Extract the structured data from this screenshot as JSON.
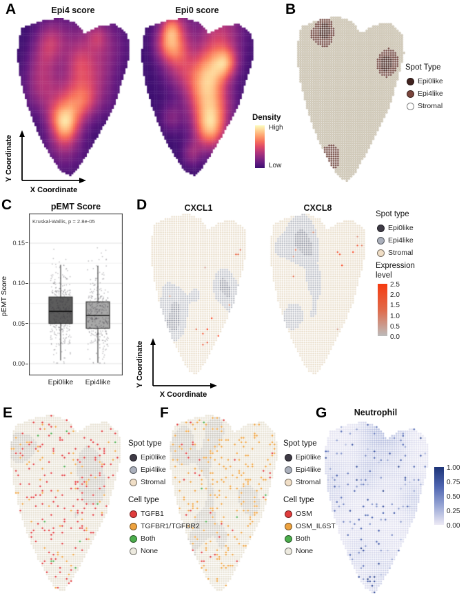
{
  "tissue_outline": [
    [
      0.06,
      0.06
    ],
    [
      0.22,
      0.02
    ],
    [
      0.38,
      0.0
    ],
    [
      0.52,
      0.03
    ],
    [
      0.6,
      0.1
    ],
    [
      0.72,
      0.05
    ],
    [
      0.86,
      0.04
    ],
    [
      0.97,
      0.1
    ],
    [
      0.99,
      0.22
    ],
    [
      0.95,
      0.34
    ],
    [
      0.9,
      0.45
    ],
    [
      0.86,
      0.55
    ],
    [
      0.78,
      0.66
    ],
    [
      0.7,
      0.76
    ],
    [
      0.62,
      0.86
    ],
    [
      0.55,
      0.94
    ],
    [
      0.48,
      1.0
    ],
    [
      0.4,
      0.97
    ],
    [
      0.33,
      0.9
    ],
    [
      0.25,
      0.8
    ],
    [
      0.17,
      0.68
    ],
    [
      0.1,
      0.54
    ],
    [
      0.05,
      0.4
    ],
    [
      0.02,
      0.26
    ],
    [
      0.03,
      0.14
    ]
  ],
  "colormaps": {
    "magma": [
      "#140e36",
      "#3b0f70",
      "#641a80",
      "#8c2981",
      "#b5367a",
      "#de4968",
      "#f7705c",
      "#fe9f6d",
      "#fece91",
      "#fcfdbf"
    ],
    "magma_legend": [
      "#fcfdbf",
      "#fece91",
      "#fe9f6d",
      "#f7705c",
      "#de4968",
      "#b5367a",
      "#8c2981",
      "#641a80",
      "#3b0f70"
    ],
    "reds": [
      "#bcbcbc",
      "#d09179",
      "#e5643f",
      "#f63a10"
    ],
    "reds_legend": [
      "#f63a10",
      "#e06a4a",
      "#bcbcbc"
    ],
    "blues": [
      "#edeaf5",
      "#bcc3e2",
      "#7b8cc7",
      "#3c55a8",
      "#1d3478"
    ],
    "blues_legend": [
      "#1d3478",
      "#4d64b0",
      "#97a5d4",
      "#edeaf5"
    ]
  },
  "panels": {
    "a": {
      "label": "A",
      "titles": [
        "Epi4 score",
        "Epi0 score"
      ],
      "legend": {
        "title": "Density",
        "high": "High",
        "low": "Low"
      },
      "x_axis": "X Coordinate",
      "y_axis": "Y Coordinate"
    },
    "b": {
      "label": "B",
      "legend": {
        "title": "Spot Type",
        "items": [
          {
            "label": "Epi0like",
            "color": "#42231f"
          },
          {
            "label": "Epi4like",
            "color": "#7a453c"
          },
          {
            "label": "Stromal",
            "color": "#ffffff"
          }
        ]
      }
    },
    "c": {
      "label": "C",
      "title": "pEMT Score",
      "annotation": "Kruskal-Wallis, p = 2.8e-05",
      "y_axis": "pEMT Score",
      "y_ticks": [
        "0.15",
        "0.10",
        "0.05",
        "0.00"
      ],
      "x_labels": [
        "Epi0like",
        "Epi4like"
      ]
    },
    "d": {
      "label": "D",
      "titles": [
        "CXCL1",
        "CXCL8"
      ],
      "spot_legend": {
        "title": "Spot type",
        "items": [
          {
            "label": "Epi0like",
            "color": "#3f3b46"
          },
          {
            "label": "Epi4like",
            "color": "#abb0bc"
          },
          {
            "label": "Stromal",
            "color": "#f0dec6"
          }
        ]
      },
      "expr_legend": {
        "title": "Expression level",
        "ticks": [
          "2.5",
          "2.0",
          "1.5",
          "1.0",
          "0.5",
          "0.0"
        ]
      },
      "x_axis": "X Coordinate",
      "y_axis": "Y Coordinate"
    },
    "e": {
      "label": "E",
      "spot_legend": {
        "title": "Spot type",
        "items": [
          {
            "label": "Epi0like",
            "color": "#3f3b46"
          },
          {
            "label": "Epi4like",
            "color": "#abb0bc"
          },
          {
            "label": "Stromal",
            "color": "#f0dec6"
          }
        ]
      },
      "cell_legend": {
        "title": "Cell type",
        "items": [
          {
            "label": "TGFB1",
            "color": "#e03c3c"
          },
          {
            "label": "TGFBR1/TGFBR2",
            "color": "#eda23f"
          },
          {
            "label": "Both",
            "color": "#4cae4c"
          },
          {
            "label": "None",
            "color": "#edeadf"
          }
        ]
      }
    },
    "f": {
      "label": "F",
      "spot_legend": {
        "title": "Spot type",
        "items": [
          {
            "label": "Epi0like",
            "color": "#3f3b46"
          },
          {
            "label": "Epi4like",
            "color": "#abb0bc"
          },
          {
            "label": "Stromal",
            "color": "#f0dec6"
          }
        ]
      },
      "cell_legend": {
        "title": "Cell type",
        "items": [
          {
            "label": "OSM",
            "color": "#e03c3c"
          },
          {
            "label": "OSM_IL6ST",
            "color": "#eda23f"
          },
          {
            "label": "Both",
            "color": "#4cae4c"
          },
          {
            "label": "None",
            "color": "#edeadf"
          }
        ]
      }
    },
    "g": {
      "label": "G",
      "title": "Neutrophil",
      "legend": {
        "ticks": [
          "1.00",
          "0.75",
          "0.50",
          "0.25",
          "0.00"
        ]
      }
    }
  },
  "chart_data": [
    {
      "id": "a1",
      "type": "heatmap",
      "title": "Epi4 score",
      "measure": "density",
      "legend": {
        "high": "High",
        "low": "Low"
      },
      "colormap": "magma",
      "seed": 11,
      "blobs": 15,
      "hotspots": [
        [
          0.3,
          0.16,
          1.0,
          0.1
        ],
        [
          0.24,
          0.45,
          0.95,
          0.12
        ],
        [
          0.55,
          0.3,
          0.7,
          0.09
        ],
        [
          0.42,
          0.72,
          0.65,
          0.09
        ],
        [
          0.62,
          0.52,
          0.5,
          0.08
        ]
      ]
    },
    {
      "id": "a2",
      "type": "heatmap",
      "title": "Epi0 score",
      "measure": "density",
      "legend": {
        "high": "High",
        "low": "Low"
      },
      "colormap": "magma",
      "seed": 29,
      "blobs": 15,
      "hotspots": [
        [
          0.55,
          0.5,
          1.05,
          0.12
        ],
        [
          0.62,
          0.68,
          0.9,
          0.1
        ],
        [
          0.35,
          0.22,
          0.55,
          0.08
        ],
        [
          0.78,
          0.28,
          0.5,
          0.07
        ],
        [
          0.45,
          0.86,
          0.55,
          0.06
        ]
      ]
    },
    {
      "id": "b",
      "type": "spots",
      "classes": [
        "Epi0like",
        "Epi4like",
        "Stromal"
      ],
      "seed": 5,
      "threshold": 0.5,
      "core": 0.78,
      "colors": {
        "epi0": "#452620",
        "epi4": "#6d423a",
        "stromal_fill": "#ded8ca",
        "stromal_stroke": "#b3a992"
      }
    },
    {
      "id": "c",
      "type": "box",
      "title": "pEMT Score",
      "annotation": "Kruskal-Wallis, p = 2.8e-05",
      "ylabel": "pEMT Score",
      "ylim": [
        0,
        0.155
      ],
      "yticks": [
        0,
        0.05,
        0.1,
        0.15
      ],
      "seed": 101,
      "groups": [
        {
          "label": "Epi0like",
          "color": "#5c5c5c",
          "median": 0.065,
          "q1": 0.05,
          "q3": 0.083,
          "whisker_low": 0.004,
          "whisker_high": 0.123,
          "n_points": 320,
          "spread": 0.027
        },
        {
          "label": "Epi4like",
          "color": "#a8a8a8",
          "median": 0.06,
          "q1": 0.044,
          "q3": 0.077,
          "whisker_low": 0.001,
          "whisker_high": 0.122,
          "n_points": 320,
          "spread": 0.026
        }
      ]
    },
    {
      "id": "d1",
      "type": "expression",
      "gene": "CXCL1",
      "seed": 41,
      "expr_seed": 142,
      "stromal_threshold": 0.36,
      "expr_rate": 0.02,
      "colors": {
        "epi0": "#9194a0",
        "epi4": "#b7bac2",
        "stromal": "#e8dcc8"
      },
      "colormap": "reds",
      "scale": [
        0,
        2.5
      ]
    },
    {
      "id": "d2",
      "type": "expression",
      "gene": "CXCL8",
      "seed": 57,
      "expr_seed": 158,
      "stromal_threshold": 0.36,
      "expr_rate": 0.014,
      "colors": {
        "epi0": "#9194a0",
        "epi4": "#b7bac2",
        "stromal": "#e8dcc8"
      },
      "colormap": "reds",
      "scale": [
        0,
        2.5
      ]
    },
    {
      "id": "e",
      "type": "celltype",
      "seed": 61,
      "threshold": 0.5,
      "base": {
        "epi": "#cac6bd",
        "stromal": "#e6e0d1"
      },
      "cells": [
        {
          "name": "TGFB1",
          "color": "#e03c3c",
          "p": 0.06
        },
        {
          "name": "TGFBR1/TGFBR2",
          "color": "#eda23f",
          "p": 0.025
        },
        {
          "name": "Both",
          "color": "#4cae4c",
          "p": 0.004
        }
      ]
    },
    {
      "id": "f",
      "type": "celltype",
      "seed": 77,
      "threshold": 0.5,
      "base": {
        "epi": "#ccc8bf",
        "stromal": "#e7e1d2"
      },
      "cells": [
        {
          "name": "OSM",
          "color": "#e03c3c",
          "p": 0.012
        },
        {
          "name": "OSM_IL6ST",
          "color": "#eda23f",
          "p": 0.08
        },
        {
          "name": "Both",
          "color": "#4cae4c",
          "p": 0.003
        }
      ]
    },
    {
      "id": "g",
      "type": "score",
      "score": "Neutrophil",
      "seed": 91,
      "colormap": "blues",
      "scale": [
        0,
        1
      ]
    }
  ]
}
